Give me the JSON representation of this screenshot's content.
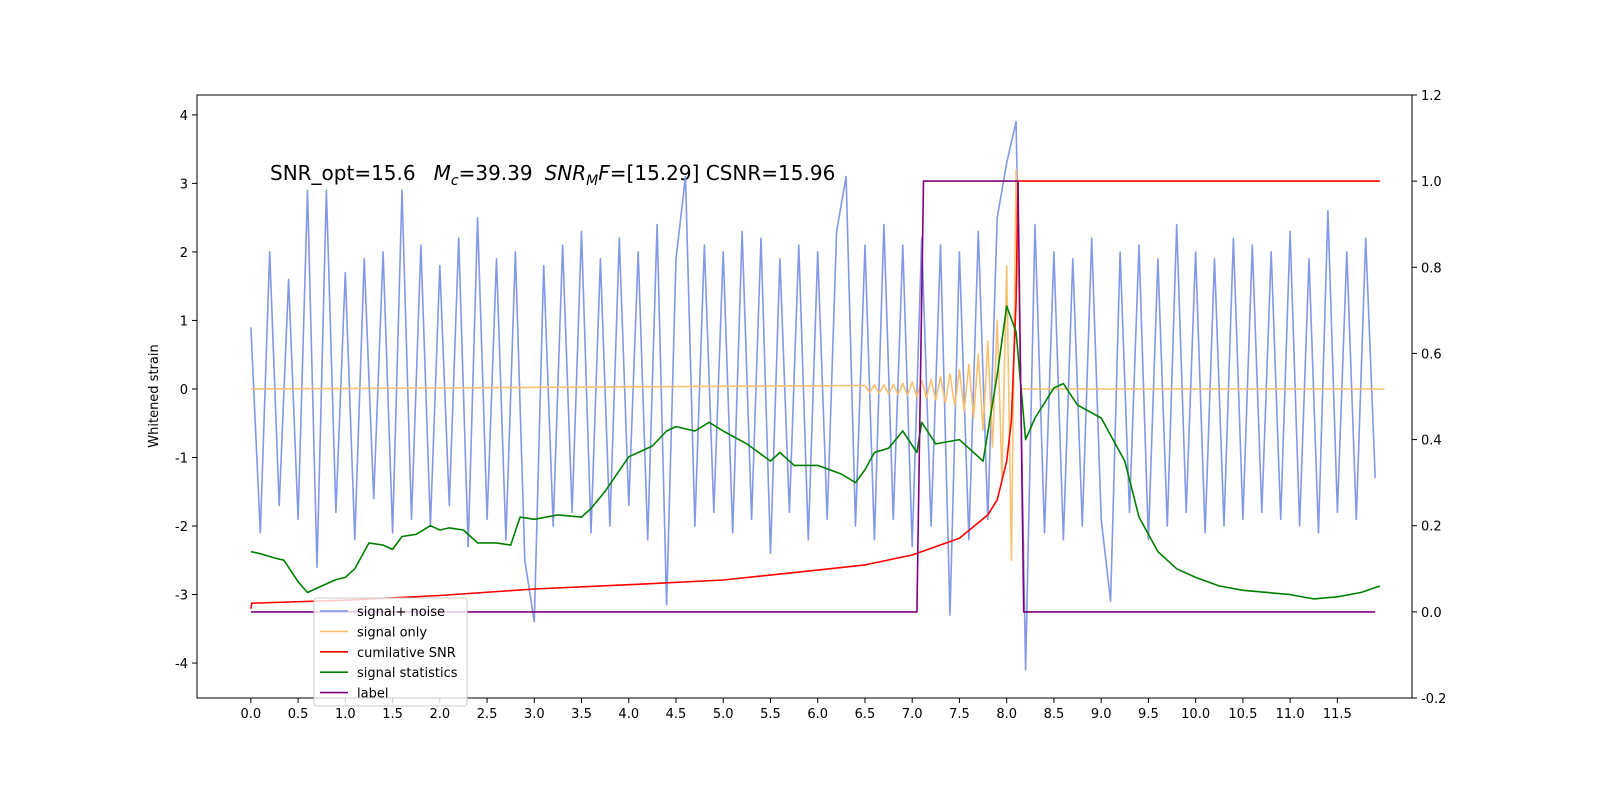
{
  "chart_data": {
    "type": "line",
    "annotation": [
      "SNR_opt=15.6",
      "M",
      "c",
      "=39.39",
      "SNR",
      "M",
      "F",
      "=[15.29] CSNR=15.96"
    ],
    "ylabel": "Whitened strain",
    "xlim": [
      -0.57,
      12.29
    ],
    "ylim": [
      -4.51,
      4.29
    ],
    "y2lim": [
      -0.2,
      1.2
    ],
    "xticks": [
      {
        "value": 0,
        "label": "0.0"
      },
      0.5,
      {
        "value": 1,
        "label": "1.0"
      },
      1.5,
      {
        "value": 2,
        "label": "2.0"
      },
      2.5,
      {
        "value": 3,
        "label": "3.0"
      },
      3.5,
      {
        "value": 4,
        "label": "4.0"
      },
      4.5,
      {
        "value": 5,
        "label": "5.0"
      },
      5.5,
      {
        "value": 6,
        "label": "6.0"
      },
      6.5,
      {
        "value": 7,
        "label": "7.0"
      },
      7.5,
      {
        "value": 8,
        "label": "8.0"
      },
      8.5,
      {
        "value": 9,
        "label": "9.0"
      },
      9.5,
      {
        "value": 10,
        "label": "10.0"
      },
      10.5,
      {
        "value": 11,
        "label": "11.0"
      },
      11.5
    ],
    "yticks": [
      -4,
      -3,
      -2,
      -1,
      0,
      1,
      2,
      3,
      4
    ],
    "y2ticks": [
      -0.2,
      {
        "value": 0,
        "label": "0.0"
      },
      0.2,
      0.4,
      0.6,
      0.8,
      {
        "value": 1,
        "label": "1.0"
      },
      1.2
    ],
    "series": [
      {
        "name": "signal+ noise",
        "color": "#7b93e6",
        "x": [
          0.0,
          0.1,
          0.2,
          0.3,
          0.4,
          0.5,
          0.6,
          0.7,
          0.8,
          0.9,
          1.0,
          1.1,
          1.2,
          1.3,
          1.4,
          1.5,
          1.6,
          1.7,
          1.8,
          1.9,
          2.0,
          2.1,
          2.2,
          2.3,
          2.4,
          2.5,
          2.6,
          2.7,
          2.8,
          2.9,
          3.0,
          3.1,
          3.2,
          3.3,
          3.4,
          3.5,
          3.6,
          3.7,
          3.8,
          3.9,
          4.0,
          4.1,
          4.2,
          4.3,
          4.4,
          4.5,
          4.6,
          4.7,
          4.8,
          4.9,
          5.0,
          5.1,
          5.2,
          5.3,
          5.4,
          5.5,
          5.6,
          5.7,
          5.8,
          5.9,
          6.0,
          6.1,
          6.2,
          6.3,
          6.4,
          6.5,
          6.6,
          6.7,
          6.8,
          6.9,
          7.0,
          7.1,
          7.2,
          7.3,
          7.4,
          7.5,
          7.6,
          7.7,
          7.8,
          7.9,
          8.0,
          8.1,
          8.2,
          8.3,
          8.4,
          8.5,
          8.6,
          8.7,
          8.8,
          8.9,
          9.0,
          9.1,
          9.2,
          9.3,
          9.4,
          9.5,
          9.6,
          9.7,
          9.8,
          9.9,
          10.0,
          10.1,
          10.2,
          10.3,
          10.4,
          10.5,
          10.6,
          10.7,
          10.8,
          10.9,
          11.0,
          11.1,
          11.2,
          11.3,
          11.4,
          11.5,
          11.6,
          11.7,
          11.8,
          11.9
        ],
        "values": [
          0.9,
          -2.1,
          2.0,
          -1.7,
          1.6,
          -1.9,
          2.9,
          -2.6,
          2.9,
          -1.8,
          1.7,
          -2.2,
          1.9,
          -1.6,
          2.0,
          -2.1,
          2.9,
          -1.9,
          2.1,
          -2.0,
          1.8,
          -1.7,
          2.2,
          -2.3,
          2.5,
          -1.9,
          1.9,
          -2.2,
          2.0,
          -2.5,
          -3.4,
          1.8,
          -2.0,
          2.1,
          -1.8,
          2.3,
          -2.1,
          1.9,
          -2.0,
          2.2,
          -1.7,
          2.0,
          -2.2,
          2.4,
          -3.15,
          1.9,
          3.1,
          -2.0,
          2.1,
          -1.8,
          2.0,
          -2.1,
          2.3,
          -1.9,
          2.2,
          -2.4,
          1.9,
          -1.8,
          2.1,
          -2.2,
          2.0,
          -1.9,
          2.3,
          3.1,
          -2.0,
          2.1,
          -2.2,
          2.4,
          -1.9,
          2.1,
          -2.3,
          2.2,
          -2.0,
          2.1,
          -3.3,
          2.0,
          -2.2,
          2.3,
          -1.9,
          2.5,
          3.3,
          3.9,
          -4.1,
          2.4,
          -2.1,
          2.0,
          -2.2,
          1.9,
          -2.0,
          2.2,
          -1.9,
          -3.1,
          2.0,
          -1.8,
          2.1,
          -2.2,
          1.9,
          -2.0,
          2.4,
          -1.8,
          2.0,
          -2.1,
          1.9,
          -2.0,
          2.2,
          -1.9,
          2.1,
          -1.8,
          2.0,
          -1.9,
          2.3,
          -2.0,
          1.9,
          -2.1,
          2.6,
          -1.8,
          2.0,
          -1.9,
          2.2,
          -1.3
        ]
      },
      {
        "name": "signal only",
        "color": "#f9be6a",
        "x": [
          0,
          6.5,
          6.55,
          6.6,
          6.65,
          6.7,
          6.75,
          6.8,
          6.85,
          6.9,
          6.95,
          7.0,
          7.05,
          7.1,
          7.15,
          7.2,
          7.25,
          7.3,
          7.35,
          7.4,
          7.45,
          7.5,
          7.55,
          7.6,
          7.65,
          7.7,
          7.75,
          7.8,
          7.85,
          7.9,
          7.95,
          8.0,
          8.05,
          8.1,
          8.15,
          12.0
        ],
        "values": [
          0,
          0.05,
          -0.05,
          0.06,
          -0.06,
          0.06,
          -0.07,
          0.07,
          -0.08,
          0.08,
          -0.09,
          0.1,
          -0.11,
          0.12,
          -0.13,
          0.14,
          -0.16,
          0.18,
          -0.2,
          0.22,
          -0.25,
          0.28,
          -0.32,
          0.36,
          -0.42,
          0.5,
          -0.6,
          0.7,
          -0.85,
          1.0,
          -1.3,
          1.8,
          -2.5,
          3.2,
          0,
          0
        ]
      },
      {
        "name": "cumilative SNR",
        "color": "#ff0000",
        "axis": "y2",
        "x": [
          0,
          0.01,
          1,
          2,
          3,
          4,
          5,
          6,
          6.5,
          7,
          7.5,
          7.8,
          7.9,
          8.0,
          8.05,
          8.1,
          8.12,
          11.95
        ],
        "values": [
          0.007,
          0.02,
          0.027,
          0.038,
          0.053,
          0.063,
          0.074,
          0.097,
          0.109,
          0.132,
          0.171,
          0.225,
          0.26,
          0.35,
          0.445,
          0.72,
          1.0,
          1.0
        ]
      },
      {
        "name": "signal statistics",
        "color": "#008000",
        "axis": "y2",
        "x": [
          0,
          0.1,
          0.25,
          0.35,
          0.5,
          0.6,
          0.75,
          0.9,
          1.0,
          1.1,
          1.25,
          1.4,
          1.5,
          1.6,
          1.75,
          1.9,
          2.0,
          2.1,
          2.25,
          2.4,
          2.6,
          2.75,
          2.85,
          3.0,
          3.25,
          3.5,
          3.6,
          3.75,
          4.0,
          4.25,
          4.4,
          4.5,
          4.7,
          4.85,
          5.0,
          5.25,
          5.5,
          5.6,
          5.75,
          6.0,
          6.25,
          6.4,
          6.5,
          6.6,
          6.75,
          6.9,
          7.05,
          7.1,
          7.25,
          7.5,
          7.6,
          7.75,
          7.9,
          8.0,
          8.1,
          8.2,
          8.3,
          8.5,
          8.6,
          8.75,
          9.0,
          9.25,
          9.4,
          9.6,
          9.8,
          10.0,
          10.25,
          10.5,
          11.0,
          11.25,
          11.5,
          11.75,
          11.95
        ],
        "values": [
          0.14,
          0.135,
          0.125,
          0.12,
          0.07,
          0.045,
          0.06,
          0.075,
          0.08,
          0.1,
          0.16,
          0.155,
          0.145,
          0.175,
          0.18,
          0.2,
          0.19,
          0.195,
          0.19,
          0.16,
          0.16,
          0.155,
          0.22,
          0.215,
          0.225,
          0.22,
          0.24,
          0.28,
          0.36,
          0.385,
          0.42,
          0.43,
          0.42,
          0.44,
          0.42,
          0.39,
          0.35,
          0.37,
          0.34,
          0.34,
          0.32,
          0.3,
          0.33,
          0.37,
          0.38,
          0.42,
          0.37,
          0.44,
          0.39,
          0.4,
          0.38,
          0.35,
          0.55,
          0.71,
          0.65,
          0.4,
          0.45,
          0.52,
          0.53,
          0.48,
          0.45,
          0.35,
          0.22,
          0.14,
          0.1,
          0.08,
          0.06,
          0.05,
          0.04,
          0.03,
          0.035,
          0.045,
          0.06
        ]
      },
      {
        "name": "label",
        "color": "#800080",
        "axis": "y2",
        "x": [
          0,
          7.05,
          7.12,
          8.12,
          8.18,
          11.9
        ],
        "values": [
          0,
          0,
          1,
          1,
          0,
          0
        ]
      }
    ]
  }
}
